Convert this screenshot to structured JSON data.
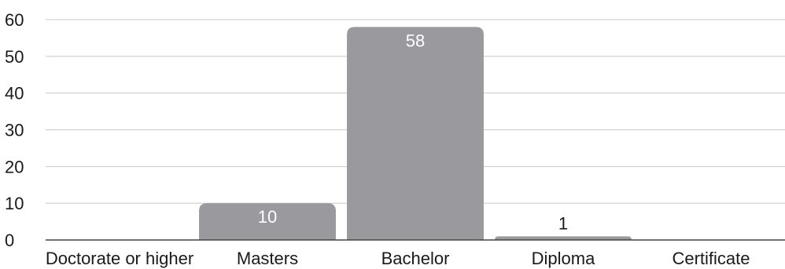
{
  "chart_data": {
    "type": "bar",
    "categories": [
      "Doctorate or higher",
      "Masters",
      "Bachelor",
      "Diploma",
      "Certificate"
    ],
    "values": [
      0,
      10,
      58,
      1,
      0
    ],
    "data_labels": [
      "",
      "10",
      "58",
      "1",
      ""
    ],
    "ylim": [
      0,
      60
    ],
    "yticks": [
      0,
      10,
      20,
      30,
      40,
      50,
      60
    ],
    "grid": true,
    "colors": {
      "bar": "#9a9a9e",
      "grid": "#c8c8c8",
      "baseline": "#444444",
      "label_inside": "#ffffff",
      "label_outside": "#1a1a1a"
    }
  }
}
